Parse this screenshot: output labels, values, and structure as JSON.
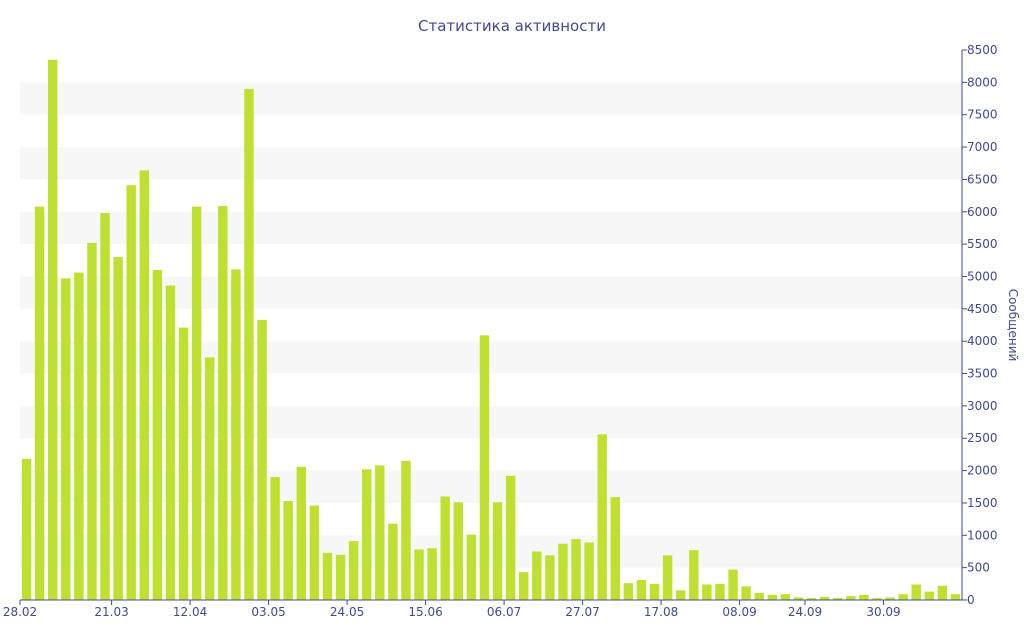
{
  "chart_data": {
    "type": "bar",
    "title": "Статистика активности",
    "ylabel": "Сообщений",
    "xlabel": "",
    "ylim": [
      0,
      8500
    ],
    "y_ticks": [
      "0",
      "500",
      "1000",
      "1500",
      "2000",
      "2500",
      "3000",
      "3500",
      "4000",
      "4500",
      "5000",
      "5500",
      "6000",
      "6500",
      "7000",
      "7500",
      "8000",
      "8500"
    ],
    "x_tick_labels": [
      {
        "label": "28.02",
        "bar_index": 0
      },
      {
        "label": "21.03",
        "bar_index": 6.5
      },
      {
        "label": "12.04",
        "bar_index": 12.5
      },
      {
        "label": "03.05",
        "bar_index": 18.5
      },
      {
        "label": "24.05",
        "bar_index": 24.5
      },
      {
        "label": "15.06",
        "bar_index": 30.5
      },
      {
        "label": "06.07",
        "bar_index": 36.5
      },
      {
        "label": "27.07",
        "bar_index": 42.5
      },
      {
        "label": "17.08",
        "bar_index": 48.5
      },
      {
        "label": "08.09",
        "bar_index": 54.5
      },
      {
        "label": "24.09",
        "bar_index": 59.5
      },
      {
        "label": "30.09",
        "bar_index": 65.5
      }
    ],
    "grid": "horizontal alternating bands",
    "y_axis_position": "right",
    "bar_color": "#bde031",
    "values": [
      2180,
      6080,
      8350,
      4970,
      5060,
      5520,
      5980,
      5300,
      6410,
      6640,
      5100,
      4860,
      4210,
      6080,
      3750,
      6090,
      5110,
      7900,
      4330,
      1900,
      1530,
      2060,
      1460,
      730,
      700,
      910,
      2020,
      2080,
      1180,
      2150,
      780,
      800,
      1600,
      1510,
      1010,
      4090,
      1510,
      1920,
      430,
      750,
      690,
      870,
      940,
      890,
      2560,
      1590,
      260,
      310,
      250,
      690,
      150,
      770,
      240,
      250,
      470,
      210,
      110,
      80,
      90,
      40,
      30,
      50,
      30,
      60,
      80,
      30,
      40,
      90,
      240,
      130,
      220,
      90
    ]
  }
}
